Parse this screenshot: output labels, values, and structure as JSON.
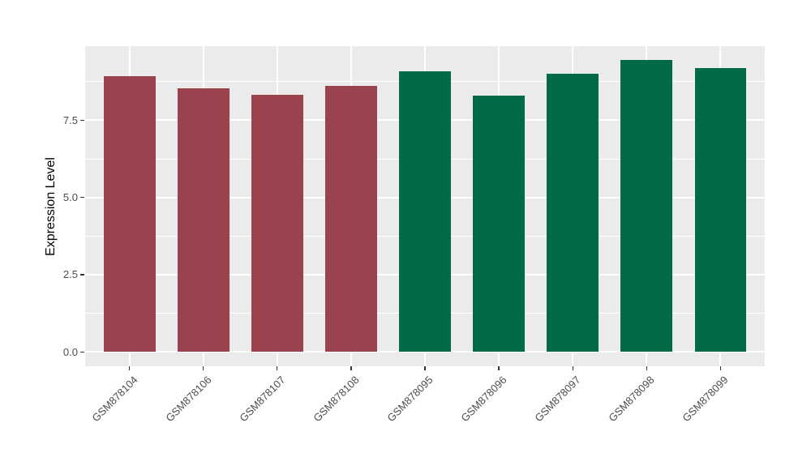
{
  "chart_data": {
    "type": "bar",
    "title": "",
    "xlabel": "",
    "ylabel": "Expression Level",
    "categories": [
      "GSM878104",
      "GSM878106",
      "GSM878107",
      "GSM878108",
      "GSM878095",
      "GSM878096",
      "GSM878097",
      "GSM878098",
      "GSM878099"
    ],
    "values": [
      8.93,
      8.54,
      8.33,
      8.62,
      9.09,
      8.3,
      9.01,
      9.46,
      9.19
    ],
    "bar_colors": [
      "#9A434F",
      "#9A434F",
      "#9A434F",
      "#9A434F",
      "#026A48",
      "#026A48",
      "#026A48",
      "#026A48",
      "#026A48"
    ],
    "group_colors": {
      "maroon_group": "#9A434F",
      "green_group": "#026A48"
    },
    "ytick_labels": [
      "0.0",
      "2.5",
      "5.0",
      "7.5"
    ],
    "ytick_values": [
      0,
      2.5,
      5,
      7.5
    ],
    "ytick_minor_values": [
      1.25,
      3.75,
      6.25,
      8.75
    ],
    "ylim": [
      -0.47,
      9.9
    ],
    "grid": true,
    "legend_position": "none",
    "panel_bg": "#EBEBEB",
    "grid_color": "#FFFFFF",
    "axis_text_color": "#4d4d4d"
  }
}
